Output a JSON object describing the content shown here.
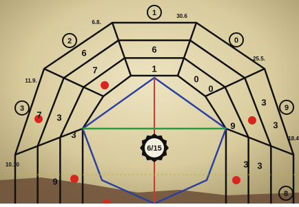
{
  "circled_labels": [
    "1",
    "2",
    "0",
    "3",
    "9",
    "8"
  ],
  "corner_labels": [
    "6.8.",
    "30.6",
    "25.5.",
    "11.9.",
    "18.4",
    "10.10"
  ],
  "cell_numbers": [
    "6",
    "1",
    "6",
    "7",
    "0",
    "0",
    "7",
    "3",
    "3",
    "3",
    "3",
    "9",
    "3",
    "3",
    "9"
  ],
  "center_badge": "6/15"
}
